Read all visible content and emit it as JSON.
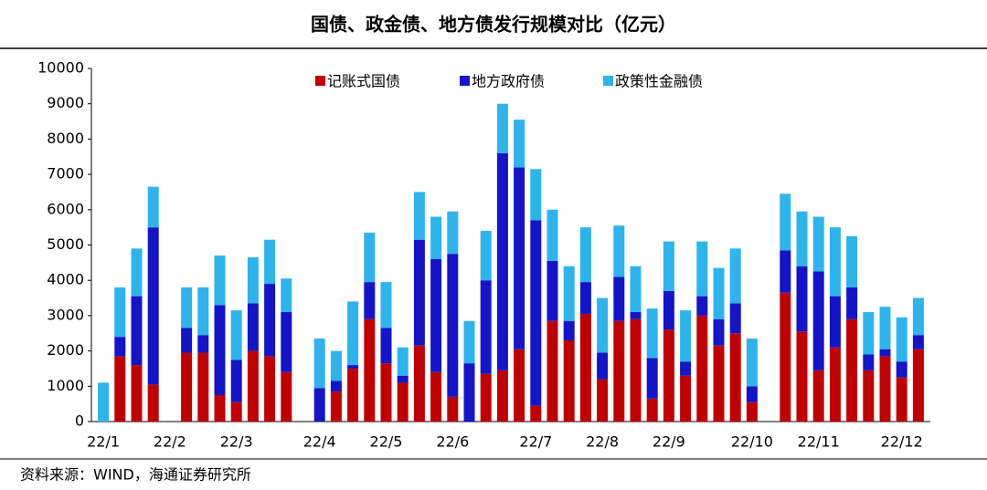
{
  "chart_data": {
    "type": "stacked-bar",
    "title": "国债、政金债、地方债发行规模对比（亿元）",
    "source": "资料来源：WIND，海通证券研究所",
    "categories": [
      "22/1",
      null,
      null,
      null,
      "22/2",
      null,
      null,
      null,
      "22/3",
      null,
      null,
      null,
      null,
      "22/4",
      null,
      null,
      null,
      "22/5",
      null,
      null,
      null,
      "22/6",
      null,
      null,
      null,
      null,
      "22/7",
      null,
      null,
      null,
      "22/8",
      null,
      null,
      null,
      "22/9",
      null,
      null,
      null,
      null,
      "22/10",
      null,
      null,
      null,
      "22/11",
      null,
      null,
      null,
      null,
      "22/12",
      null
    ],
    "series": [
      {
        "name": "记账式国债",
        "color": "#c00000",
        "values": [
          0,
          1850,
          1600,
          1050,
          null,
          1950,
          1950,
          750,
          550,
          2000,
          1850,
          1400,
          null,
          0,
          850,
          1500,
          2900,
          1650,
          1100,
          2150,
          1400,
          700,
          0,
          1350,
          1450,
          2050,
          450,
          2850,
          2300,
          3050,
          1200,
          2850,
          2900,
          650,
          2600,
          1300,
          3000,
          2150,
          2500,
          550,
          null,
          3650,
          2550,
          1450,
          2100,
          2900,
          1450,
          1850,
          1250,
          2050
        ]
      },
      {
        "name": "地方政府债",
        "color": "#1414c8",
        "values": [
          0,
          550,
          1950,
          4450,
          null,
          700,
          500,
          2550,
          1200,
          1350,
          2050,
          1700,
          null,
          950,
          300,
          100,
          1050,
          1000,
          200,
          3000,
          3200,
          4050,
          1650,
          2650,
          6150,
          5150,
          5250,
          1700,
          550,
          900,
          750,
          1250,
          200,
          1150,
          1100,
          400,
          550,
          750,
          850,
          450,
          null,
          1200,
          1850,
          2800,
          1450,
          900,
          450,
          200,
          450,
          400
        ]
      },
      {
        "name": "政策性金融债",
        "color": "#2eb4ec",
        "values": [
          1100,
          1400,
          1350,
          1150,
          null,
          1150,
          1350,
          1400,
          1400,
          1300,
          1250,
          950,
          null,
          1400,
          850,
          1800,
          1400,
          1300,
          800,
          1350,
          1200,
          1200,
          1200,
          1400,
          1400,
          1350,
          1450,
          1450,
          1550,
          1550,
          1550,
          1450,
          1300,
          1400,
          1400,
          1450,
          1550,
          1450,
          1550,
          1350,
          null,
          1600,
          1550,
          1550,
          1950,
          1450,
          1200,
          1200,
          1250,
          1050
        ]
      }
    ],
    "ylim": [
      0,
      10000
    ],
    "yticks": [
      0,
      1000,
      2000,
      3000,
      4000,
      5000,
      6000,
      7000,
      8000,
      9000,
      10000
    ],
    "grid": false
  }
}
